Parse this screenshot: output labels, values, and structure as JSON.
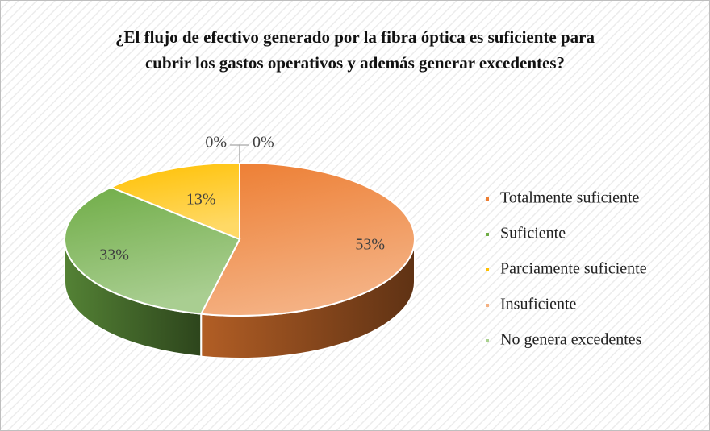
{
  "chart_data": {
    "type": "pie3d",
    "title": "¿El flujo de efectivo generado por la fibra óptica es suficiente para cubrir los gastos operativos y además generar excedentes?",
    "categories": [
      "Totalmente suficiente",
      "Suficiente",
      "Parciamente suficiente",
      "Insuficiente",
      "No genera excedentes"
    ],
    "values": [
      53,
      33,
      13,
      0,
      0
    ],
    "value_labels": [
      "53%",
      "33%",
      "13%",
      "0%",
      "0%"
    ],
    "colors": [
      "#ed7d31",
      "#70ad47",
      "#ffc000",
      "#f4b183",
      "#a9d18e"
    ],
    "legend": "right"
  }
}
